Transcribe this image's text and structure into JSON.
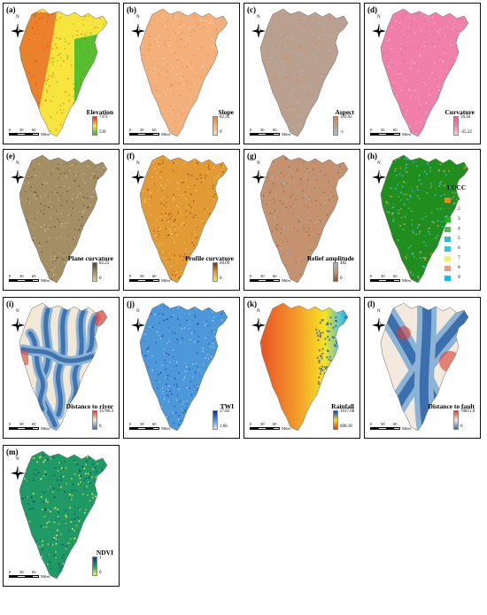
{
  "scale_bar": {
    "ticks": [
      "0",
      "30",
      "60"
    ],
    "unit": "Miles"
  },
  "north_letter": "N",
  "panels": [
    {
      "letter": "(a)",
      "title": "Elevation",
      "max": "7471",
      "min": "539",
      "colors": [
        "#e4301e",
        "#f7e43c",
        "#39b92c"
      ],
      "kind": "topo"
    },
    {
      "letter": "(b)",
      "title": "Slope",
      "max": "82.35",
      "min": "0",
      "colors": [
        "#e9853d",
        "#f3b07b",
        "#f9dcc2"
      ],
      "kind": "plain"
    },
    {
      "letter": "(c)",
      "title": "Aspect",
      "max": "359.92",
      "min": "-1",
      "colors": [
        "#d5845b",
        "#b9a08f",
        "#a9bdd0"
      ],
      "kind": "plain"
    },
    {
      "letter": "(d)",
      "title": "Curvature",
      "max": "56.44",
      "min": "-35.22",
      "colors": [
        "#ee5a97",
        "#f080aa",
        "#f8cfe0"
      ],
      "kind": "plain"
    },
    {
      "letter": "(e)",
      "title": "Plane curvature",
      "max": "82.25",
      "min": "0",
      "colors": [
        "#5c4121",
        "#a48f64",
        "#d9cba6"
      ],
      "kind": "plain"
    },
    {
      "letter": "(f)",
      "title": "Profile curvature",
      "max": "69.09",
      "min": "0",
      "colors": [
        "#8c2a0c",
        "#e19a34",
        "#f8dc8a"
      ],
      "kind": "plain"
    },
    {
      "letter": "(g)",
      "title": "Relief amplitude",
      "max": "482",
      "min": "0",
      "colors": [
        "#8cc1c6",
        "#c59270",
        "#8d4f2e"
      ],
      "kind": "plain"
    },
    {
      "letter": "(h)",
      "title": "LUCC",
      "kind": "lucc",
      "classes": [
        {
          "label": "1",
          "color": "#e38f17"
        },
        {
          "label": "2",
          "color": "#1f8e1f"
        },
        {
          "label": "3",
          "color": "#20b020"
        },
        {
          "label": "4",
          "color": "#5fb35a"
        },
        {
          "label": "5",
          "color": "#39b9c7"
        },
        {
          "label": "6",
          "color": "#3bc3de"
        },
        {
          "label": "7",
          "color": "#f1ef7a"
        },
        {
          "label": "8",
          "color": "#e89a84"
        },
        {
          "label": "9",
          "color": "#19b8f0"
        }
      ]
    },
    {
      "letter": "(i)",
      "title": "Distance to river",
      "max": "35766.3",
      "min": "0",
      "colors": [
        "#e0433a",
        "#f3e7d5",
        "#3f73b0"
      ],
      "kind": "river"
    },
    {
      "letter": "(j)",
      "title": "TWI",
      "max": "27.82",
      "min": "1.66",
      "colors": [
        "#14299a",
        "#4c98d9",
        "#dbe9f6"
      ],
      "kind": "plain"
    },
    {
      "letter": "(k)",
      "title": "Rainfall",
      "max": "1617.68",
      "min": "600.18",
      "colors": [
        "#1136cf",
        "#f6e422",
        "#e5301f"
      ],
      "kind": "rain"
    },
    {
      "letter": "(l)",
      "title": "Distance to fault",
      "max": "78851.6",
      "min": "0",
      "colors": [
        "#df3a2e",
        "#f3e9dc",
        "#3c6fae"
      ],
      "kind": "fault"
    },
    {
      "letter": "(m)",
      "title": "NDVI",
      "max": "1",
      "min": "0",
      "colors": [
        "#0f3e83",
        "#1f9a64",
        "#eaf05a"
      ],
      "kind": "ndvi"
    }
  ]
}
